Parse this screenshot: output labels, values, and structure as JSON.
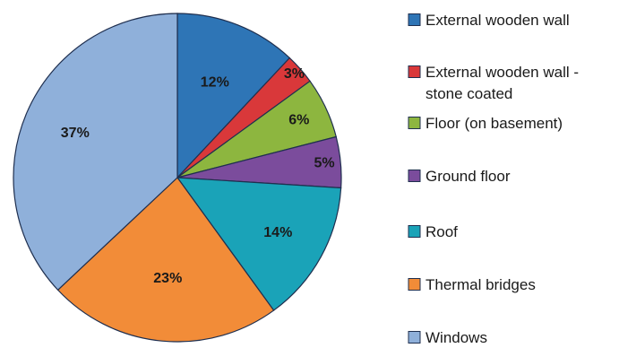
{
  "chart_data": {
    "type": "pie",
    "categories": [
      "External wooden wall",
      "External wooden wall - stone coated",
      "Floor (on basement)",
      "Ground floor",
      "Roof",
      "Thermal bridges",
      "Windows"
    ],
    "legend_lines": [
      [
        "External wooden wall"
      ],
      [
        "External wooden wall -",
        "stone coated"
      ],
      [
        "Floor (on basement)"
      ],
      [
        "Ground floor"
      ],
      [
        "Roof"
      ],
      [
        "Thermal bridges"
      ],
      [
        "Windows"
      ]
    ],
    "values": [
      12,
      3,
      6,
      5,
      14,
      23,
      37
    ],
    "labels": [
      "12%",
      "3%",
      "6%",
      "5%",
      "14%",
      "23%",
      "37%"
    ],
    "colors": [
      "#2E75B6",
      "#D9383A",
      "#8DB63F",
      "#7B4C9C",
      "#1AA3B8",
      "#F28C38",
      "#8FB0DA"
    ],
    "start_angle_deg": 0,
    "direction": "clockwise",
    "legend_position": "right",
    "title": ""
  }
}
